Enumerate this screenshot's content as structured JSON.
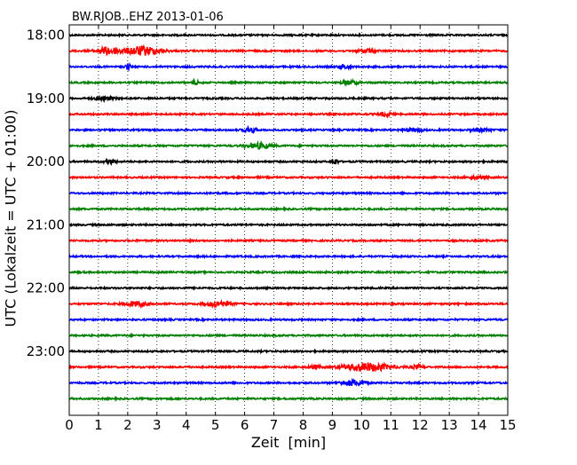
{
  "chart_data": {
    "type": "line",
    "title": "BW.RJOB..EHZ 2013-01-06",
    "xlabel": "Zeit  [min]",
    "ylabel": "UTC (Lokalzeit = UTC + 01:00)",
    "x_ticks": [
      0,
      1,
      2,
      3,
      4,
      5,
      6,
      7,
      8,
      9,
      10,
      11,
      12,
      13,
      14,
      15
    ],
    "xlim": [
      0,
      15
    ],
    "y_tick_labels": [
      "18:00",
      "19:00",
      "20:00",
      "21:00",
      "22:00",
      "23:00"
    ],
    "grid": "vertical dotted",
    "trace_interval_min": 15,
    "colors": [
      "#000000",
      "#ff0000",
      "#0000ff",
      "#008000"
    ],
    "traces": [
      {
        "start": "18:00",
        "color": "#000000"
      },
      {
        "start": "18:15",
        "color": "#ff0000",
        "events": [
          {
            "t": 1.3,
            "amp": 4,
            "dur": 0.4
          },
          {
            "t": 2.5,
            "amp": 5,
            "dur": 0.6
          },
          {
            "t": 10.2,
            "amp": 2,
            "dur": 0.3
          }
        ]
      },
      {
        "start": "18:30",
        "color": "#0000ff",
        "events": [
          {
            "t": 2.0,
            "amp": 3,
            "dur": 0.1
          },
          {
            "t": 9.4,
            "amp": 2,
            "dur": 0.2
          }
        ]
      },
      {
        "start": "18:45",
        "color": "#008000",
        "events": [
          {
            "t": 4.3,
            "amp": 3,
            "dur": 0.1
          },
          {
            "t": 9.6,
            "amp": 2,
            "dur": 0.3
          }
        ]
      },
      {
        "start": "19:00",
        "color": "#000000",
        "events": [
          {
            "t": 1.2,
            "amp": 2,
            "dur": 0.3
          }
        ]
      },
      {
        "start": "19:15",
        "color": "#ff0000",
        "events": [
          {
            "t": 10.8,
            "amp": 2,
            "dur": 0.2
          }
        ]
      },
      {
        "start": "19:30",
        "color": "#0000ff",
        "events": [
          {
            "t": 6.2,
            "amp": 3,
            "dur": 0.2
          },
          {
            "t": 11.8,
            "amp": 1.5,
            "dur": 0.3
          },
          {
            "t": 14.1,
            "amp": 1.5,
            "dur": 0.3
          }
        ]
      },
      {
        "start": "19:45",
        "color": "#008000",
        "events": [
          {
            "t": 6.5,
            "amp": 3,
            "dur": 0.4
          }
        ]
      },
      {
        "start": "20:00",
        "color": "#000000",
        "events": [
          {
            "t": 1.4,
            "amp": 2,
            "dur": 0.2
          },
          {
            "t": 9.1,
            "amp": 3,
            "dur": 0.1
          }
        ]
      },
      {
        "start": "20:15",
        "color": "#ff0000",
        "events": [
          {
            "t": 14.0,
            "amp": 1.5,
            "dur": 0.3
          }
        ]
      },
      {
        "start": "20:30",
        "color": "#0000ff"
      },
      {
        "start": "20:45",
        "color": "#008000"
      },
      {
        "start": "21:00",
        "color": "#000000"
      },
      {
        "start": "21:15",
        "color": "#ff0000"
      },
      {
        "start": "21:30",
        "color": "#0000ff"
      },
      {
        "start": "21:45",
        "color": "#008000"
      },
      {
        "start": "22:00",
        "color": "#000000"
      },
      {
        "start": "22:15",
        "color": "#ff0000",
        "events": [
          {
            "t": 2.3,
            "amp": 2.5,
            "dur": 0.4
          },
          {
            "t": 5.1,
            "amp": 3,
            "dur": 0.4
          }
        ]
      },
      {
        "start": "22:30",
        "color": "#0000ff"
      },
      {
        "start": "22:45",
        "color": "#008000"
      },
      {
        "start": "23:00",
        "color": "#000000"
      },
      {
        "start": "23:15",
        "color": "#ff0000",
        "events": [
          {
            "t": 8.4,
            "amp": 2,
            "dur": 0.2
          },
          {
            "t": 10.2,
            "amp": 4.5,
            "dur": 0.8
          },
          {
            "t": 11.9,
            "amp": 2,
            "dur": 0.2
          }
        ]
      },
      {
        "start": "23:30",
        "color": "#0000ff",
        "events": [
          {
            "t": 9.7,
            "amp": 3,
            "dur": 0.4
          }
        ]
      },
      {
        "start": "23:45",
        "color": "#008000"
      }
    ]
  }
}
